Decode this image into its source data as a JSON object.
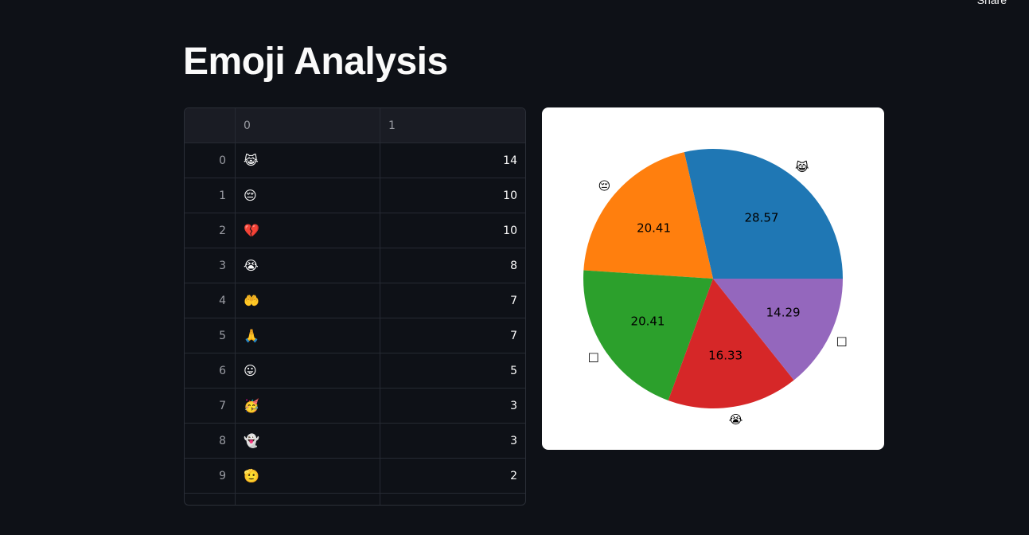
{
  "header": {
    "share_label": "Share"
  },
  "page": {
    "title": "Emoji Analysis"
  },
  "table": {
    "columns": [
      "",
      "0",
      "1"
    ],
    "rows": [
      {
        "index": "0",
        "emoji": "😹",
        "count": "14"
      },
      {
        "index": "1",
        "emoji": "😔",
        "count": "10"
      },
      {
        "index": "2",
        "emoji": "💔",
        "count": "10"
      },
      {
        "index": "3",
        "emoji": "😭",
        "count": "8"
      },
      {
        "index": "4",
        "emoji": "🤲",
        "count": "7"
      },
      {
        "index": "5",
        "emoji": "🙏",
        "count": "7"
      },
      {
        "index": "6",
        "emoji": "😛",
        "count": "5"
      },
      {
        "index": "7",
        "emoji": "🥳",
        "count": "3"
      },
      {
        "index": "8",
        "emoji": "👻",
        "count": "3"
      },
      {
        "index": "9",
        "emoji": "🫡",
        "count": "2"
      }
    ]
  },
  "chart_data": {
    "type": "pie",
    "categories": [
      "😹",
      "😔",
      "💔",
      "😭",
      "🤲"
    ],
    "values": [
      28.57,
      20.41,
      20.41,
      16.33,
      14.29
    ],
    "value_labels": [
      "28.57",
      "20.41",
      "20.41",
      "16.33",
      "14.29"
    ],
    "outer_labels": [
      "😹",
      "😔",
      "□",
      "😭",
      "□"
    ],
    "colors": [
      "#1f77b4",
      "#ff7f0e",
      "#2ca02c",
      "#d62728",
      "#9467bd"
    ],
    "title": "",
    "legend": "none"
  }
}
